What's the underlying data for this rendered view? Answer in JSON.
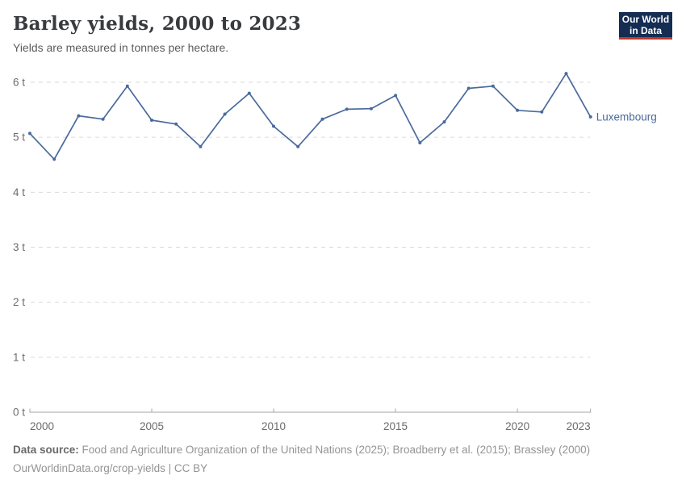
{
  "header": {
    "title": "Barley yields, 2000 to 2023",
    "subtitle": "Yields are measured in tonnes per hectare."
  },
  "logo": {
    "line1": "Our World",
    "line2": "in Data",
    "bg_color": "#152d52",
    "bar_color": "#c0392b"
  },
  "chart_data": {
    "type": "line",
    "title": "Barley yields, 2000 to 2023",
    "unit": "tonnes per hectare",
    "x": [
      2000,
      2001,
      2002,
      2003,
      2004,
      2005,
      2006,
      2007,
      2008,
      2009,
      2010,
      2011,
      2012,
      2013,
      2014,
      2015,
      2016,
      2017,
      2018,
      2019,
      2020,
      2021,
      2022,
      2023
    ],
    "series": [
      {
        "name": "Luxembourg",
        "values": [
          5.07,
          4.6,
          5.39,
          5.33,
          5.93,
          5.31,
          5.24,
          4.83,
          5.42,
          5.8,
          5.2,
          4.83,
          5.33,
          5.51,
          5.52,
          5.76,
          4.9,
          5.28,
          5.89,
          5.93,
          5.49,
          5.46,
          6.16,
          5.37
        ]
      }
    ],
    "xlim": [
      2000,
      2023
    ],
    "ylim": [
      0,
      6
    ],
    "yticks": [
      {
        "value": 0,
        "label": "0 t"
      },
      {
        "value": 1,
        "label": "1 t"
      },
      {
        "value": 2,
        "label": "2 t"
      },
      {
        "value": 3,
        "label": "3 t"
      },
      {
        "value": 4,
        "label": "4 t"
      },
      {
        "value": 5,
        "label": "5 t"
      },
      {
        "value": 6,
        "label": "6 t"
      }
    ],
    "xticks": [
      {
        "value": 2000,
        "label": "2000"
      },
      {
        "value": 2005,
        "label": "2005"
      },
      {
        "value": 2010,
        "label": "2010"
      },
      {
        "value": 2015,
        "label": "2015"
      },
      {
        "value": 2020,
        "label": "2020"
      },
      {
        "value": 2023,
        "label": "2023"
      }
    ],
    "grid": "horizontal-dashed",
    "legend": "line-end-label",
    "line_color": "#4a6a9c"
  },
  "footer": {
    "source_label": "Data source:",
    "source_text": "Food and Agriculture Organization of the United Nations (2025); Broadberry et al. (2015); Brassley (2000)",
    "attribution": "OurWorldinData.org/crop-yields | CC BY"
  }
}
